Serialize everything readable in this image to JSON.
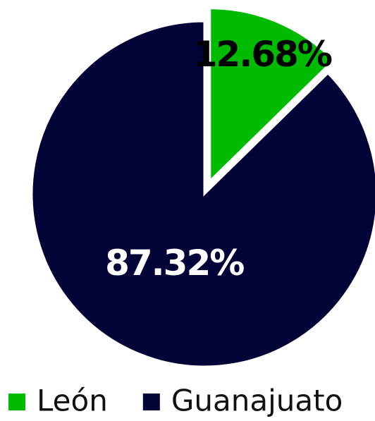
{
  "chart_data": {
    "type": "pie",
    "categories": [
      "León",
      "Guanajuato"
    ],
    "values": [
      12.68,
      87.32
    ],
    "value_labels": [
      "12.68%",
      "87.32%"
    ],
    "colors": [
      "#00bb00",
      "#020438"
    ],
    "label_colors": [
      "#000000",
      "#ffffff"
    ],
    "exploded": [
      true,
      false
    ]
  }
}
